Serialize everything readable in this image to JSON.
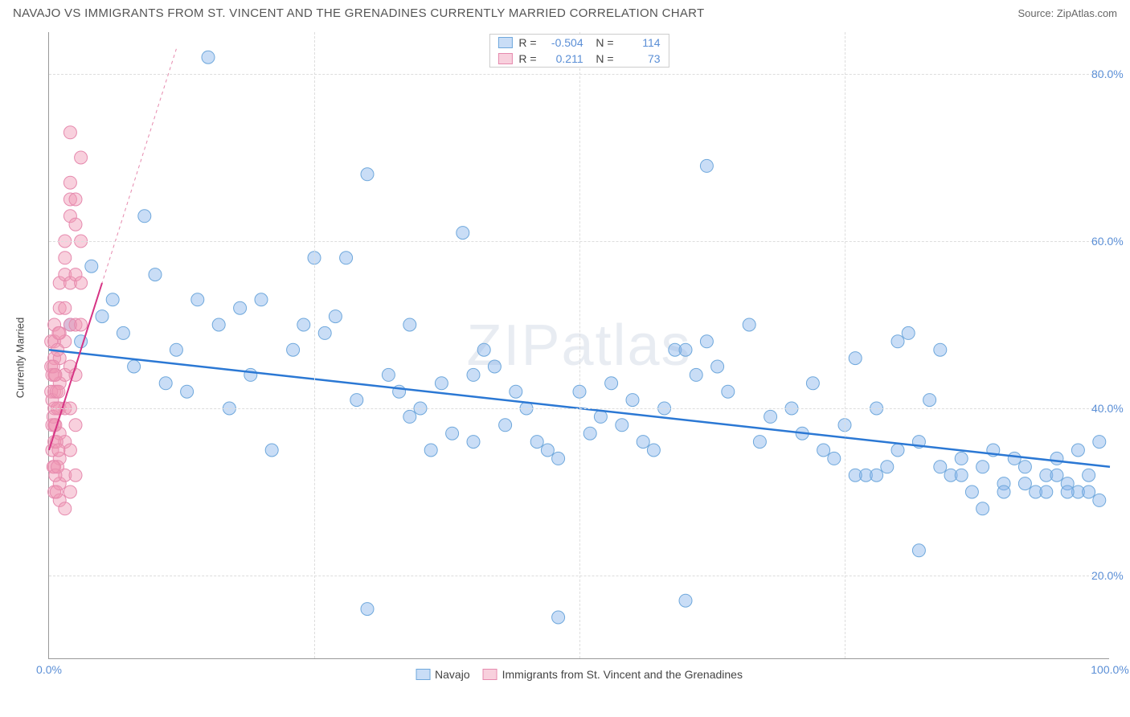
{
  "title": "NAVAJO VS IMMIGRANTS FROM ST. VINCENT AND THE GRENADINES CURRENTLY MARRIED CORRELATION CHART",
  "source": "Source: ZipAtlas.com",
  "watermark": "ZIPatlas",
  "chart": {
    "type": "scatter",
    "y_label": "Currently Married",
    "x_range": [
      0,
      100
    ],
    "y_range": [
      10,
      85
    ],
    "x_ticks": [
      0,
      25,
      50,
      75,
      100
    ],
    "x_tick_labels": [
      "0.0%",
      "",
      "",
      "",
      "100.0%"
    ],
    "y_ticks": [
      20,
      40,
      60,
      80
    ],
    "y_tick_labels": [
      "20.0%",
      "40.0%",
      "60.0%",
      "80.0%"
    ],
    "background_color": "#ffffff",
    "grid_color": "#dddddd",
    "series": [
      {
        "name": "Navajo",
        "r": "-0.504",
        "n": "114",
        "marker_fill": "rgba(135,180,235,0.45)",
        "marker_stroke": "#6fa8dc",
        "marker_radius": 8,
        "trend": {
          "x1": 0,
          "y1": 47,
          "x2": 100,
          "y2": 33,
          "color": "#2b78d4",
          "width": 2.5,
          "dash": ""
        },
        "points": [
          [
            15,
            82
          ],
          [
            9,
            63
          ],
          [
            4,
            57
          ],
          [
            6,
            53
          ],
          [
            10,
            56
          ],
          [
            12,
            47
          ],
          [
            14,
            53
          ],
          [
            16,
            50
          ],
          [
            18,
            52
          ],
          [
            20,
            53
          ],
          [
            3,
            48
          ],
          [
            2,
            50
          ],
          [
            5,
            51
          ],
          [
            7,
            49
          ],
          [
            8,
            45
          ],
          [
            11,
            43
          ],
          [
            13,
            42
          ],
          [
            17,
            40
          ],
          [
            19,
            44
          ],
          [
            21,
            35
          ],
          [
            23,
            47
          ],
          [
            24,
            50
          ],
          [
            25,
            58
          ],
          [
            26,
            49
          ],
          [
            27,
            51
          ],
          [
            28,
            58
          ],
          [
            29,
            41
          ],
          [
            30,
            16
          ],
          [
            30,
            68
          ],
          [
            32,
            44
          ],
          [
            33,
            42
          ],
          [
            34,
            39
          ],
          [
            34,
            50
          ],
          [
            35,
            40
          ],
          [
            36,
            35
          ],
          [
            37,
            43
          ],
          [
            38,
            37
          ],
          [
            39,
            61
          ],
          [
            40,
            44
          ],
          [
            40,
            36
          ],
          [
            41,
            47
          ],
          [
            42,
            45
          ],
          [
            43,
            38
          ],
          [
            44,
            42
          ],
          [
            45,
            40
          ],
          [
            46,
            36
          ],
          [
            47,
            35
          ],
          [
            48,
            34
          ],
          [
            48,
            15
          ],
          [
            50,
            42
          ],
          [
            51,
            37
          ],
          [
            52,
            39
          ],
          [
            53,
            43
          ],
          [
            54,
            38
          ],
          [
            55,
            41
          ],
          [
            56,
            36
          ],
          [
            57,
            35
          ],
          [
            58,
            40
          ],
          [
            59,
            47
          ],
          [
            60,
            47
          ],
          [
            61,
            44
          ],
          [
            62,
            48
          ],
          [
            63,
            45
          ],
          [
            62,
            69
          ],
          [
            64,
            42
          ],
          [
            60,
            17
          ],
          [
            66,
            50
          ],
          [
            67,
            36
          ],
          [
            68,
            39
          ],
          [
            70,
            40
          ],
          [
            71,
            37
          ],
          [
            72,
            43
          ],
          [
            73,
            35
          ],
          [
            74,
            34
          ],
          [
            75,
            38
          ],
          [
            76,
            46
          ],
          [
            77,
            32
          ],
          [
            78,
            40
          ],
          [
            79,
            33
          ],
          [
            80,
            35
          ],
          [
            81,
            49
          ],
          [
            82,
            36
          ],
          [
            83,
            41
          ],
          [
            84,
            47
          ],
          [
            85,
            32
          ],
          [
            86,
            34
          ],
          [
            87,
            30
          ],
          [
            88,
            33
          ],
          [
            89,
            35
          ],
          [
            90,
            31
          ],
          [
            91,
            34
          ],
          [
            92,
            33
          ],
          [
            93,
            30
          ],
          [
            94,
            32
          ],
          [
            95,
            34
          ],
          [
            96,
            31
          ],
          [
            97,
            30
          ],
          [
            98,
            32
          ],
          [
            99,
            29
          ],
          [
            82,
            23
          ],
          [
            88,
            28
          ],
          [
            90,
            30
          ],
          [
            86,
            32
          ],
          [
            92,
            31
          ],
          [
            94,
            30
          ],
          [
            95,
            32
          ],
          [
            96,
            30
          ],
          [
            97,
            35
          ],
          [
            98,
            30
          ],
          [
            99,
            36
          ],
          [
            84,
            33
          ],
          [
            80,
            48
          ],
          [
            78,
            32
          ],
          [
            76,
            32
          ]
        ]
      },
      {
        "name": "Immigrants from St. Vincent and the Grenadines",
        "r": "0.211",
        "n": "73",
        "marker_fill": "rgba(240,150,180,0.45)",
        "marker_stroke": "#e68aae",
        "marker_radius": 8,
        "trend": {
          "x1": 0,
          "y1": 35,
          "x2": 5,
          "y2": 55,
          "color": "#d63384",
          "width": 2,
          "dash": ""
        },
        "trend_ext": {
          "x1": 0,
          "y1": 35,
          "x2": 12,
          "y2": 83,
          "color": "#e68aae",
          "width": 1,
          "dash": "4,4"
        },
        "points": [
          [
            0.5,
            30
          ],
          [
            0.5,
            33
          ],
          [
            0.5,
            36
          ],
          [
            0.5,
            38
          ],
          [
            0.5,
            40
          ],
          [
            0.5,
            42
          ],
          [
            0.5,
            44
          ],
          [
            0.5,
            46
          ],
          [
            0.5,
            48
          ],
          [
            0.5,
            50
          ],
          [
            1,
            29
          ],
          [
            1,
            31
          ],
          [
            1,
            34
          ],
          [
            1,
            37
          ],
          [
            1,
            40
          ],
          [
            1,
            43
          ],
          [
            1,
            46
          ],
          [
            1,
            49
          ],
          [
            1,
            52
          ],
          [
            1,
            55
          ],
          [
            1.5,
            28
          ],
          [
            1.5,
            32
          ],
          [
            1.5,
            36
          ],
          [
            1.5,
            40
          ],
          [
            1.5,
            44
          ],
          [
            1.5,
            48
          ],
          [
            1.5,
            52
          ],
          [
            1.5,
            56
          ],
          [
            1.5,
            58
          ],
          [
            1.5,
            60
          ],
          [
            2,
            30
          ],
          [
            2,
            35
          ],
          [
            2,
            40
          ],
          [
            2,
            45
          ],
          [
            2,
            50
          ],
          [
            2,
            55
          ],
          [
            2,
            63
          ],
          [
            2,
            65
          ],
          [
            2,
            67
          ],
          [
            2,
            73
          ],
          [
            2.5,
            32
          ],
          [
            2.5,
            38
          ],
          [
            2.5,
            44
          ],
          [
            2.5,
            50
          ],
          [
            2.5,
            56
          ],
          [
            2.5,
            62
          ],
          [
            2.5,
            65
          ],
          [
            0.2,
            42
          ],
          [
            0.2,
            45
          ],
          [
            0.2,
            48
          ],
          [
            0.3,
            35
          ],
          [
            0.3,
            38
          ],
          [
            0.3,
            41
          ],
          [
            0.3,
            44
          ],
          [
            0.4,
            33
          ],
          [
            0.4,
            39
          ],
          [
            0.4,
            45
          ],
          [
            0.6,
            32
          ],
          [
            0.6,
            38
          ],
          [
            0.6,
            44
          ],
          [
            0.7,
            30
          ],
          [
            0.7,
            36
          ],
          [
            0.7,
            42
          ],
          [
            0.8,
            33
          ],
          [
            0.8,
            40
          ],
          [
            0.8,
            47
          ],
          [
            0.9,
            35
          ],
          [
            0.9,
            42
          ],
          [
            0.9,
            49
          ],
          [
            3,
            70
          ],
          [
            3,
            60
          ],
          [
            3,
            55
          ],
          [
            3,
            50
          ]
        ]
      }
    ]
  }
}
